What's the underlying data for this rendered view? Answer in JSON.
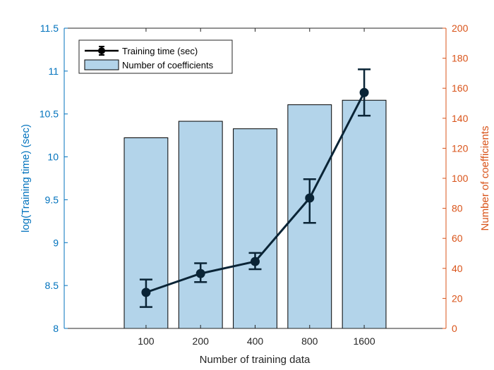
{
  "chart_data": {
    "type": "bar",
    "categories": [
      "100",
      "200",
      "400",
      "800",
      "1600"
    ],
    "xlabel": "Number of training data",
    "ylabel_left": "log(Training time) (sec)",
    "ylabel_right": "Number of coefficients",
    "ylim_left": [
      8,
      11.5
    ],
    "ylim_right": [
      0,
      200
    ],
    "yticks_left": [
      "8",
      "8.5",
      "9",
      "9.5",
      "10",
      "10.5",
      "11",
      "11.5"
    ],
    "yticks_right": [
      "0",
      "20",
      "40",
      "60",
      "80",
      "100",
      "120",
      "140",
      "160",
      "180",
      "200"
    ],
    "grid": false,
    "legend_position": "top-left",
    "series": [
      {
        "name": "Number of coefficients",
        "kind": "bar",
        "axis": "right",
        "values": [
          127,
          138,
          133,
          149,
          152
        ],
        "color": "#B3D4EA"
      },
      {
        "name": "Training time (sec)",
        "kind": "line",
        "axis": "left",
        "values": [
          8.42,
          8.64,
          8.78,
          9.52,
          10.75
        ],
        "error_low": [
          8.25,
          8.54,
          8.69,
          9.23,
          10.48
        ],
        "error_high": [
          8.57,
          8.76,
          8.88,
          9.74,
          11.02
        ],
        "color": "#0A2436"
      }
    ]
  },
  "colors": {
    "left_axis": "#0072BD",
    "right_axis": "#D95319",
    "bar_fill": "#B3D4EA",
    "line": "#0A2436"
  }
}
